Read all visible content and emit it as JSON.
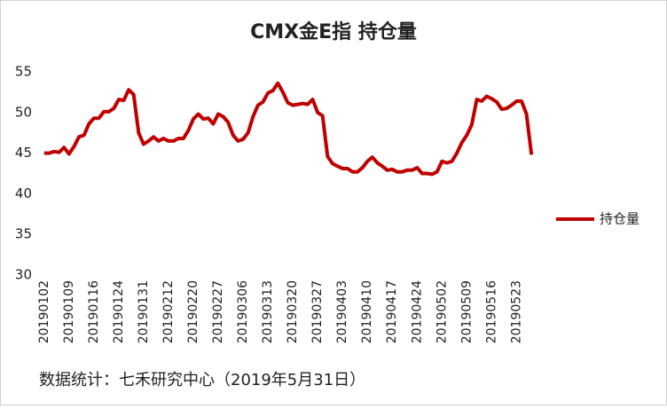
{
  "chart_data": {
    "type": "line",
    "title": "CMX金E指 持仓量",
    "footnote": "数据统计：七禾研究中心（2019年5月31日）",
    "categories": [
      "20190102",
      null,
      null,
      null,
      null,
      "20190109",
      null,
      null,
      null,
      null,
      "20190116",
      null,
      null,
      null,
      null,
      "20190124",
      null,
      null,
      null,
      null,
      "20190131",
      null,
      null,
      null,
      null,
      "20190212",
      null,
      null,
      null,
      null,
      "20190220",
      null,
      null,
      null,
      null,
      "20190227",
      null,
      null,
      null,
      null,
      "20190306",
      null,
      null,
      null,
      null,
      "20190313",
      null,
      null,
      null,
      null,
      "20190320",
      null,
      null,
      null,
      null,
      "20190327",
      null,
      null,
      null,
      null,
      "20190403",
      null,
      null,
      null,
      null,
      "20190410",
      null,
      null,
      null,
      null,
      "20190417",
      null,
      null,
      null,
      null,
      "20190424",
      null,
      null,
      null,
      null,
      "20190502",
      null,
      null,
      null,
      null,
      "20190509",
      null,
      null,
      null,
      null,
      "20190516",
      null,
      null,
      null,
      null,
      "20190523",
      null,
      null,
      null
    ],
    "series": [
      {
        "name": "持仓量",
        "color": "#c00000",
        "values": [
          45.0,
          45.0,
          45.2,
          45.1,
          45.7,
          44.9,
          45.8,
          47.0,
          47.2,
          48.6,
          49.3,
          49.3,
          50.1,
          50.1,
          50.5,
          51.6,
          51.5,
          52.8,
          52.2,
          47.5,
          46.1,
          46.5,
          47.0,
          46.5,
          46.8,
          46.5,
          46.5,
          46.8,
          46.8,
          47.8,
          49.2,
          49.8,
          49.2,
          49.3,
          48.6,
          49.8,
          49.5,
          48.8,
          47.2,
          46.5,
          46.7,
          47.5,
          49.5,
          50.9,
          51.3,
          52.4,
          52.7,
          53.6,
          52.5,
          51.2,
          50.9,
          51.0,
          51.1,
          51.0,
          51.6,
          50.0,
          49.6,
          44.6,
          43.7,
          43.4,
          43.1,
          43.1,
          42.7,
          42.7,
          43.2,
          44.0,
          44.5,
          43.8,
          43.4,
          42.9,
          43.0,
          42.7,
          42.7,
          42.9,
          42.9,
          43.2,
          42.5,
          42.5,
          42.4,
          42.7,
          44.0,
          43.8,
          44.0,
          45.0,
          46.3,
          47.2,
          48.5,
          51.6,
          51.4,
          52.0,
          51.7,
          51.3,
          50.4,
          50.5,
          50.9,
          51.4,
          51.4,
          49.8,
          44.8
        ]
      }
    ],
    "ylim": [
      30,
      55
    ],
    "yticks": [
      30,
      35,
      40,
      45,
      50,
      55
    ],
    "grid": false,
    "legend": "right"
  }
}
